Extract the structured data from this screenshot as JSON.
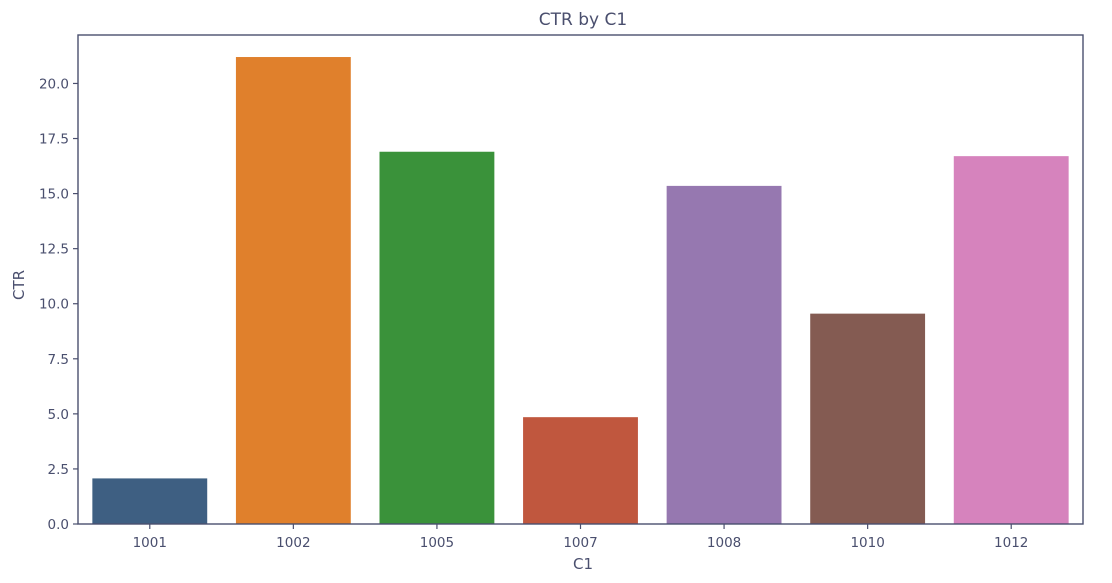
{
  "chart_data": {
    "type": "bar",
    "title": "CTR by C1",
    "xlabel": "C1",
    "ylabel": "CTR",
    "categories": [
      "1001",
      "1002",
      "1005",
      "1007",
      "1008",
      "1010",
      "1012"
    ],
    "values": [
      2.07,
      21.2,
      16.9,
      4.85,
      15.35,
      9.55,
      16.7
    ],
    "colors": [
      "#3e5f82",
      "#e0802c",
      "#3a923a",
      "#c0573e",
      "#9678b0",
      "#845b52",
      "#d683bd"
    ],
    "ylim": [
      0,
      22.2
    ],
    "yticks": [
      0.0,
      2.5,
      5.0,
      7.5,
      10.0,
      12.5,
      15.0,
      17.5,
      20.0
    ],
    "ytick_labels": [
      "0.0",
      "2.5",
      "5.0",
      "7.5",
      "10.0",
      "12.5",
      "15.0",
      "17.5",
      "20.0"
    ],
    "grid": false,
    "legend": "none"
  }
}
